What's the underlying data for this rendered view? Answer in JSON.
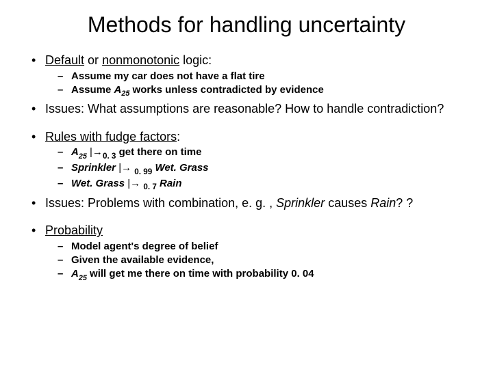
{
  "title": "Methods for handling uncertainty",
  "b1_lead": "Default",
  "b1_or": " or ",
  "b1_nonmono": "nonmonotonic",
  "b1_tail": " logic:",
  "b1s1": "Assume my car does not have a flat tire",
  "b1s2a": "Assume ",
  "b1s2_A": "A",
  "b1s2_25": "25",
  "b1s2b": " works unless contradicted by evidence",
  "b2": "Issues: What assumptions are reasonable? How to handle contradiction?",
  "b3_lead": "Rules with fudge factors",
  "b3_colon": ":",
  "b3s1_A": "A",
  "b3s1_25": "25",
  "b3s1_arrow": " |→",
  "b3s1_p": "0. 3",
  "b3s1_tail": " get there on time",
  "b3s2_lead": "Sprinkler",
  "b3s2_arrow": " |→ ",
  "b3s2_p": "0. 99",
  "b3s2_tail_sp": " ",
  "b3s2_tail": "Wet. Grass",
  "b3s3_lead": "Wet. Grass",
  "b3s3_arrow": " |→ ",
  "b3s3_p": "0. 7",
  "b3s3_tail_sp": " ",
  "b3s3_tail": "Rain",
  "b4a": "Issues: Problems with combination, e. g. , ",
  "b4_spr": "Sprinkler",
  "b4b": " causes ",
  "b4_rain": "Rain",
  "b4c": "? ?",
  "b5": "Probability",
  "b5s1": "Model agent's degree of belief",
  "b5s2": "Given the available evidence,",
  "b5s3_A": "A",
  "b5s3_25": "25",
  "b5s3_tail": " will get me there on time with probability 0. 04"
}
